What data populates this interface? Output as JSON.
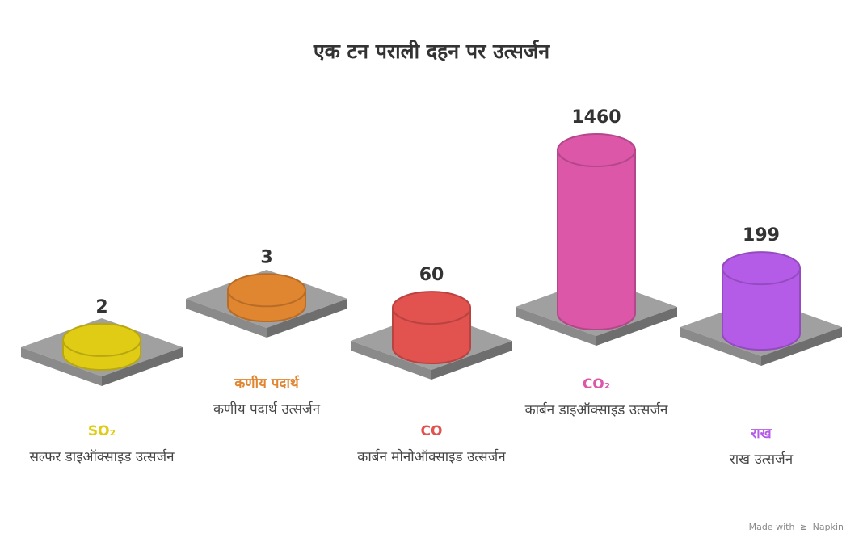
{
  "chart_data": {
    "type": "bar",
    "title": "एक टन पराली दहन पर उत्सर्जन",
    "categories": [
      "SO₂",
      "कणीय पदार्थ",
      "CO",
      "CO₂",
      "राख"
    ],
    "values": [
      2,
      3,
      60,
      1460,
      199
    ],
    "descriptions": [
      "सल्फर डाइऑक्साइड उत्सर्जन",
      "कणीय पदार्थ उत्सर्जन",
      "कार्बन मोनोऑक्साइड उत्सर्जन",
      "कार्बन डाइऑक्साइड उत्सर्जन",
      "राख उत्सर्जन"
    ],
    "colors": [
      "#e0cc14",
      "#e08530",
      "#e2524f",
      "#dc57a8",
      "#b45ce8"
    ],
    "platform_color": "#a0a0a0"
  },
  "footer": {
    "made_with": "Made with",
    "brand": "Napkin"
  }
}
